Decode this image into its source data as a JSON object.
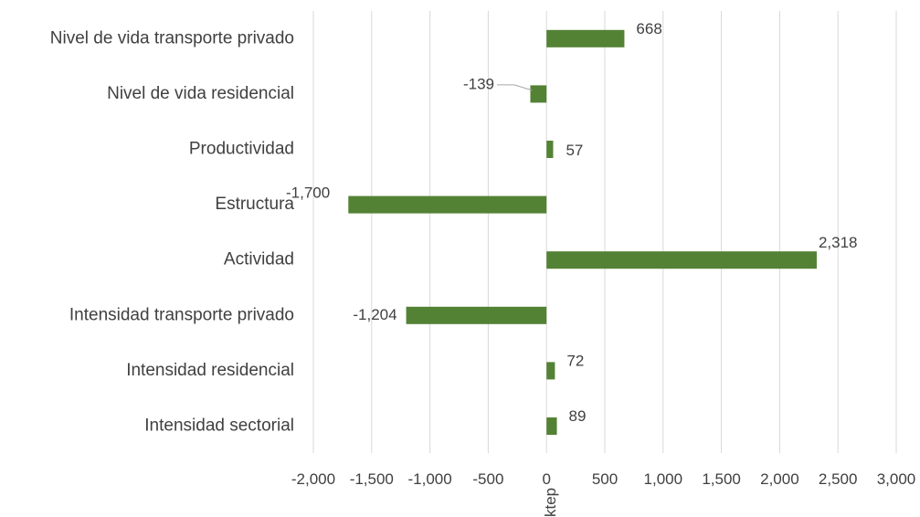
{
  "chart_data": {
    "type": "bar",
    "orientation": "horizontal",
    "categories": [
      "Nivel de vida transporte privado",
      "Nivel de vida residencial",
      "Productividad",
      "Estructura",
      "Actividad",
      "Intensidad transporte privado",
      "Intensidad residencial",
      "Intensidad sectorial"
    ],
    "values": [
      668,
      -139,
      57,
      -1700,
      2318,
      -1204,
      72,
      89
    ],
    "data_labels": [
      "668",
      "-139",
      "57",
      "-1,700",
      "2,318",
      "-1,204",
      "72",
      "89"
    ],
    "xlim": [
      -2000,
      3000
    ],
    "xticks": [
      -2000,
      -1500,
      -1000,
      -500,
      0,
      500,
      1000,
      1500,
      2000,
      2500,
      3000
    ],
    "xtick_labels": [
      "-2,000",
      "-1,500",
      "-1,000",
      "-500",
      "0",
      "500",
      "1,000",
      "1,500",
      "2,000",
      "2,500",
      "3,000"
    ],
    "xlabel": "ktep",
    "title": "",
    "grid": true,
    "legend": false,
    "bar_color": "#548235"
  }
}
